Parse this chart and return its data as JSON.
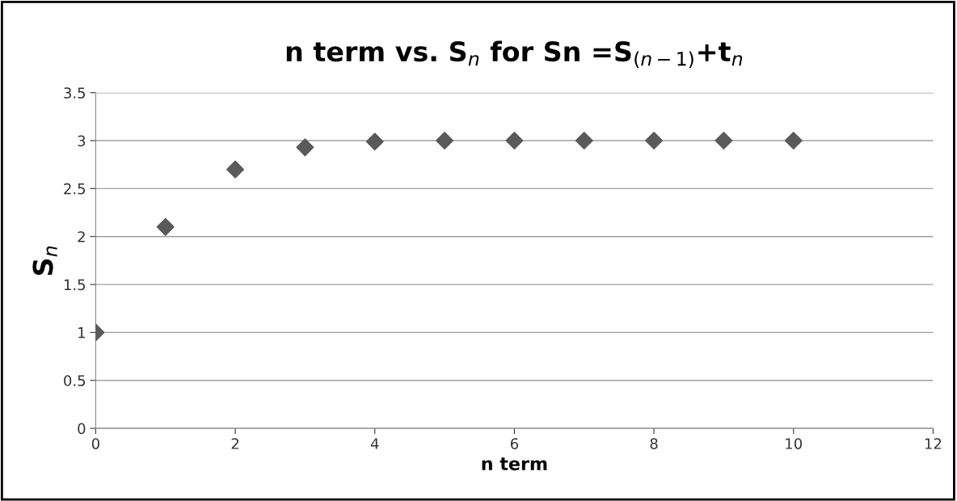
{
  "chart_data": {
    "type": "scatter",
    "title": "n term vs. S$_{n}$ for Sn =S$_{(n−1)}$+t$_{n}$",
    "xlabel": "n term",
    "ylabel": "S$_{n}$",
    "x": [
      0,
      1,
      2,
      3,
      4,
      5,
      6,
      7,
      8,
      9,
      10
    ],
    "series": [
      {
        "color": "#5a5a5a",
        "values": [
          1,
          2.1,
          2.7,
          2.93,
          2.99,
          3,
          3,
          3,
          3,
          3,
          3
        ]
      }
    ],
    "xlim": [
      0,
      12
    ],
    "xticks": [
      0,
      2,
      4,
      6,
      8,
      10,
      12
    ],
    "ylim": [
      0,
      3.5
    ],
    "yticks": [
      0,
      0.5,
      1,
      1.5,
      2,
      2.5,
      3,
      3.5
    ],
    "grid": "y",
    "marker": "diamond",
    "legend": false
  }
}
